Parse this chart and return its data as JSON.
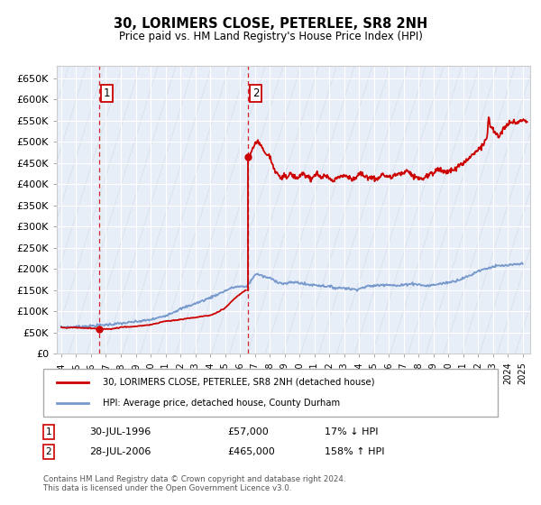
{
  "title": "30, LORIMERS CLOSE, PETERLEE, SR8 2NH",
  "subtitle": "Price paid vs. HM Land Registry's House Price Index (HPI)",
  "xlim": [
    1993.7,
    2025.5
  ],
  "ylim": [
    0,
    680000
  ],
  "yticks": [
    0,
    50000,
    100000,
    150000,
    200000,
    250000,
    300000,
    350000,
    400000,
    450000,
    500000,
    550000,
    600000,
    650000
  ],
  "ytick_labels": [
    "£0",
    "£50K",
    "£100K",
    "£150K",
    "£200K",
    "£250K",
    "£300K",
    "£350K",
    "£400K",
    "£450K",
    "£500K",
    "£550K",
    "£600K",
    "£650K"
  ],
  "xticks": [
    1994,
    1995,
    1996,
    1997,
    1998,
    1999,
    2000,
    2001,
    2002,
    2003,
    2004,
    2005,
    2006,
    2007,
    2008,
    2009,
    2010,
    2011,
    2012,
    2013,
    2014,
    2015,
    2016,
    2017,
    2018,
    2019,
    2020,
    2021,
    2022,
    2023,
    2024,
    2025
  ],
  "purchase1_x": 1996.57,
  "purchase1_y": 57000,
  "purchase1_label": "1",
  "purchase1_date": "30-JUL-1996",
  "purchase1_price": "£57,000",
  "purchase1_hpi": "17% ↓ HPI",
  "purchase2_x": 2006.57,
  "purchase2_y": 465000,
  "purchase2_label": "2",
  "purchase2_date": "28-JUL-2006",
  "purchase2_price": "£465,000",
  "purchase2_hpi": "158% ↑ HPI",
  "red_color": "#cc0000",
  "blue_color": "#7799cc",
  "bg_color": "#e8eef8",
  "legend_label1": "30, LORIMERS CLOSE, PETERLEE, SR8 2NH (detached house)",
  "legend_label2": "HPI: Average price, detached house, County Durham",
  "footer": "Contains HM Land Registry data © Crown copyright and database right 2024.\nThis data is licensed under the Open Government Licence v3.0."
}
